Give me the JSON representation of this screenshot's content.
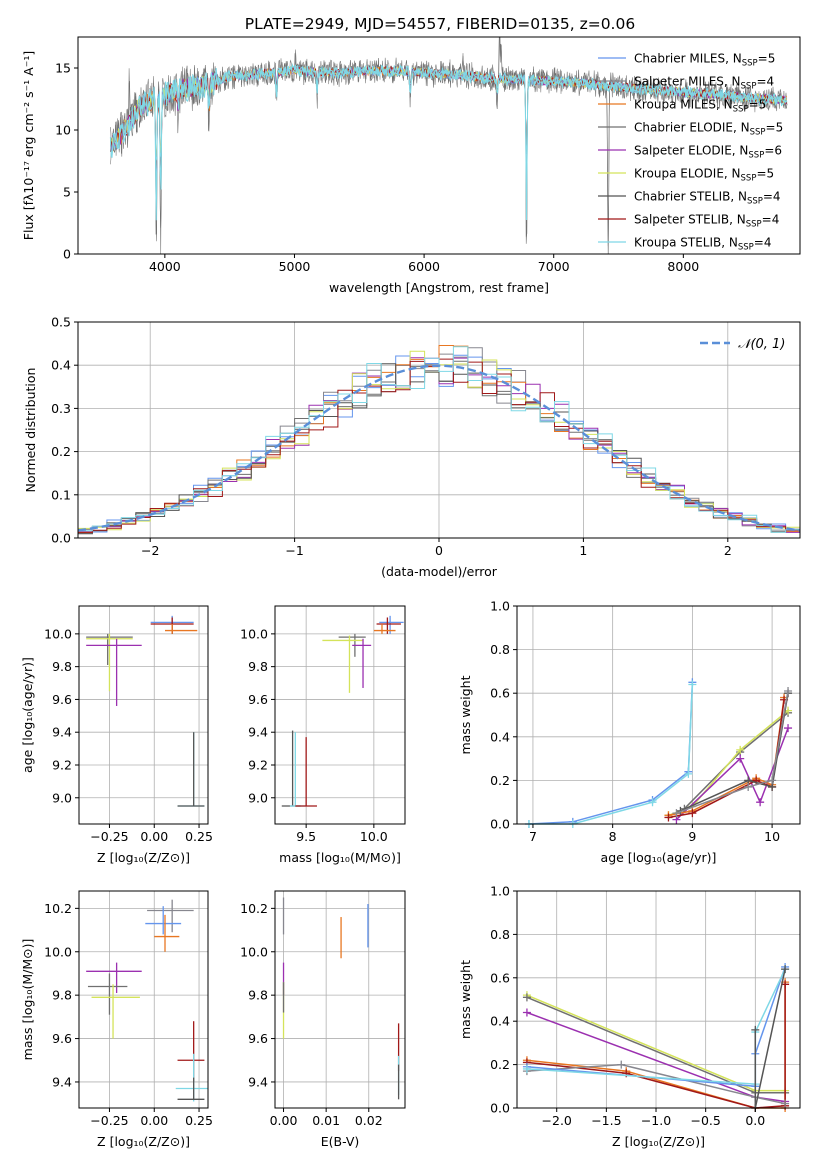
{
  "figure_title": "PLATE=2949, MJD=54557, FIBERID=0135, z=0.06",
  "colors": [
    "#6495ed",
    "#87878f",
    "#e87722",
    "#707070",
    "#9b30b0",
    "#d4e35a",
    "#555555",
    "#a01818",
    "#7fd8e6"
  ],
  "legend_labels": [
    {
      "name": "Chabrier MILES, N",
      "nssp": "SSP",
      "rest": "=5"
    },
    {
      "name": "Salpeter MILES, N",
      "nssp": "SSP",
      "rest": "=4"
    },
    {
      "name": "Kroupa MILES, N",
      "nssp": "SSP",
      "rest": "=5"
    },
    {
      "name": "Chabrier ELODIE, N",
      "nssp": "SSP",
      "rest": "=5"
    },
    {
      "name": "Salpeter ELODIE, N",
      "nssp": "SSP",
      "rest": "=6"
    },
    {
      "name": "Kroupa ELODIE, N",
      "nssp": "SSP",
      "rest": "=5"
    },
    {
      "name": "Chabrier STELIB, N",
      "nssp": "SSP",
      "rest": "=4"
    },
    {
      "name": "Salpeter STELIB, N",
      "nssp": "SSP",
      "rest": "=4"
    },
    {
      "name": "Kroupa STELIB, N",
      "nssp": "SSP",
      "rest": "=4"
    }
  ],
  "chart_data": [
    {
      "id": "spectrum",
      "type": "line",
      "xlabel": "wavelength [Angstrom, rest frame]",
      "ylabel": "Flux [fλ10⁻¹⁷ erg cm⁻² s⁻¹ A⁻¹]",
      "xlim": [
        3330,
        8900
      ],
      "ylim": [
        0,
        17.5
      ],
      "xticks": [
        4000,
        5000,
        6000,
        7000,
        8000
      ],
      "yticks": [
        0,
        5,
        10,
        15
      ],
      "continuum": [
        [
          3580,
          8.5
        ],
        [
          3700,
          10.2
        ],
        [
          3800,
          11.8
        ],
        [
          3950,
          12.6
        ],
        [
          4100,
          13.2
        ],
        [
          4300,
          13.6
        ],
        [
          4500,
          14.3
        ],
        [
          4800,
          14.6
        ],
        [
          5000,
          14.8
        ],
        [
          5300,
          14.6
        ],
        [
          5600,
          14.8
        ],
        [
          5900,
          14.7
        ],
        [
          6200,
          14.5
        ],
        [
          6500,
          14.2
        ],
        [
          6800,
          14.0
        ],
        [
          7100,
          13.9
        ],
        [
          7400,
          13.6
        ],
        [
          7800,
          13.2
        ],
        [
          8200,
          12.9
        ],
        [
          8500,
          12.6
        ],
        [
          8800,
          12.4
        ]
      ],
      "dips": [
        [
          3934,
          -12.5
        ],
        [
          3968,
          -11.8
        ],
        [
          4102,
          -2.5
        ],
        [
          4340,
          -3.5
        ],
        [
          4861,
          -2.5
        ],
        [
          5175,
          -2.0
        ],
        [
          5893,
          -2.2
        ],
        [
          6563,
          -2.0
        ],
        [
          6790,
          -14.0
        ],
        [
          7420,
          -13.6
        ]
      ],
      "spikes": [
        [
          3725,
          3.2
        ],
        [
          5007,
          1.2
        ],
        [
          6300,
          1.5
        ],
        [
          6583,
          4.5
        ],
        [
          6595,
          3.0
        ]
      ],
      "series_note": "thin overplotted model and observed spectra",
      "legend_position": "right"
    },
    {
      "id": "residuals",
      "type": "histogram",
      "xlabel": "(data-model)/error",
      "ylabel": "Normed distribution",
      "xlim": [
        -2.5,
        2.5
      ],
      "ylim": [
        0,
        0.5
      ],
      "xticks": [
        -2,
        -1,
        0,
        1,
        2
      ],
      "yticks": [
        0,
        0.1,
        0.2,
        0.3,
        0.4,
        0.5
      ],
      "bin_width": 0.1,
      "gaussian_label": "𝒩(0, 1)",
      "legend_position": "top-right"
    },
    {
      "id": "age_vs_Z",
      "type": "errorbar",
      "xlabel": "Z [log₁₀(Z/Z⊙)]",
      "ylabel": "age  [log₁₀(age/yr)]",
      "xlim": [
        -0.42,
        0.3
      ],
      "ylim": [
        8.84,
        10.17
      ],
      "xticks": [
        -0.25,
        0.0,
        0.25
      ],
      "yticks": [
        9.0,
        9.2,
        9.4,
        9.6,
        9.8,
        10.0
      ],
      "points": [
        {
          "c": 0,
          "x": 0.1,
          "y": 10.07,
          "ex": [
            -0.12,
            0.12
          ],
          "ey": [
            -0.07,
            0.04
          ]
        },
        {
          "c": 7,
          "x": 0.1,
          "y": 10.06,
          "ex": [
            -0.12,
            0.12
          ],
          "ey": [
            -0.06,
            0.04
          ]
        },
        {
          "c": 2,
          "x": 0.1,
          "y": 10.02,
          "ex": [
            -0.04,
            0.14
          ],
          "ey": [
            -0.02,
            0.04
          ]
        },
        {
          "c": 3,
          "x": -0.26,
          "y": 9.98,
          "ex": [
            -0.12,
            0.14
          ],
          "ey": [
            -0.17,
            0.02
          ]
        },
        {
          "c": 5,
          "x": -0.25,
          "y": 9.97,
          "ex": [
            -0.13,
            0.13
          ],
          "ey": [
            -0.32,
            0.03
          ]
        },
        {
          "c": 4,
          "x": -0.21,
          "y": 9.93,
          "ex": [
            -0.17,
            0.14
          ],
          "ey": [
            -0.37,
            0.04
          ]
        },
        {
          "c": 8,
          "x": 0.22,
          "y": 8.95,
          "ex": [
            -0.09,
            0.06
          ],
          "ey": [
            0,
            0.45
          ]
        },
        {
          "c": 6,
          "x": 0.22,
          "y": 8.95,
          "ex": [
            -0.09,
            0.06
          ],
          "ey": [
            0,
            0.45
          ]
        }
      ]
    },
    {
      "id": "age_vs_mass",
      "type": "errorbar",
      "xlabel": "mass [log₁₀(M/M⊙)]",
      "ylabel": "",
      "xlim": [
        9.27,
        10.23
      ],
      "ylim": [
        8.84,
        10.17
      ],
      "xticks": [
        9.5,
        10.0
      ],
      "yticks": [
        9.0,
        9.2,
        9.4,
        9.6,
        9.8,
        10.0
      ],
      "points": [
        {
          "c": 0,
          "x": 10.12,
          "y": 10.07,
          "ex": [
            -0.08,
            0.1
          ],
          "ey": [
            -0.07,
            0.04
          ]
        },
        {
          "c": 7,
          "x": 10.1,
          "y": 10.06,
          "ex": [
            -0.08,
            0.1
          ],
          "ey": [
            -0.06,
            0.04
          ]
        },
        {
          "c": 2,
          "x": 10.06,
          "y": 10.02,
          "ex": [
            -0.06,
            0.1
          ],
          "ey": [
            -0.02,
            0.04
          ]
        },
        {
          "c": 3,
          "x": 9.86,
          "y": 9.98,
          "ex": [
            -0.12,
            0.08
          ],
          "ey": [
            -0.12,
            0.02
          ]
        },
        {
          "c": 5,
          "x": 9.82,
          "y": 9.96,
          "ex": [
            -0.2,
            0.1
          ],
          "ey": [
            -0.32,
            0.03
          ]
        },
        {
          "c": 4,
          "x": 9.92,
          "y": 9.93,
          "ex": [
            -0.08,
            0.06
          ],
          "ey": [
            -0.26,
            0.04
          ]
        },
        {
          "c": 6,
          "x": 9.4,
          "y": 8.95,
          "ex": [
            -0.08,
            0.06
          ],
          "ey": [
            0,
            0.46
          ]
        },
        {
          "c": 8,
          "x": 9.42,
          "y": 8.95,
          "ex": [
            -0.04,
            0.08
          ],
          "ey": [
            0,
            0.45
          ]
        },
        {
          "c": 7,
          "x": 9.5,
          "y": 8.95,
          "ex": [
            -0.08,
            0.08
          ],
          "ey": [
            0,
            0.42
          ]
        }
      ]
    },
    {
      "id": "weight_vs_age",
      "type": "line",
      "xlabel": "age  [log₁₀(age/yr)]",
      "ylabel": "mass weight",
      "xlim": [
        6.8,
        10.35
      ],
      "ylim": [
        0,
        1.0
      ],
      "xticks": [
        7,
        8,
        9,
        10
      ],
      "yticks": [
        0,
        0.2,
        0.4,
        0.6,
        0.8,
        1.0
      ],
      "series": [
        {
          "c": 0,
          "x": [
            6.95,
            7.5,
            8.5,
            8.95,
            9.0
          ],
          "y": [
            0.0,
            0.01,
            0.11,
            0.24,
            0.65
          ]
        },
        {
          "c": 8,
          "x": 6.95,
          "x_": [
            6.95,
            7.5,
            8.5,
            8.95,
            9.0
          ],
          "y": [
            0.0,
            0.0,
            0.1,
            0.23,
            0.64
          ]
        },
        {
          "c": 3,
          "x": [
            8.9,
            9.6,
            10.2
          ],
          "y": [
            0.07,
            0.33,
            0.51
          ]
        },
        {
          "c": 5,
          "x": [
            8.7,
            9.0,
            9.6,
            10.2
          ],
          "y": [
            0.04,
            0.08,
            0.34,
            0.52
          ]
        },
        {
          "c": 4,
          "x": [
            8.8,
            9.6,
            9.85,
            10.2
          ],
          "y": [
            0.02,
            0.3,
            0.1,
            0.44
          ]
        },
        {
          "c": 2,
          "x": [
            8.7,
            9.0,
            9.8,
            10.0,
            10.15
          ],
          "y": [
            0.04,
            0.06,
            0.21,
            0.18,
            0.58
          ]
        },
        {
          "c": 7,
          "x": [
            8.7,
            9.0,
            9.8,
            10.0,
            10.15
          ],
          "y": [
            0.03,
            0.05,
            0.2,
            0.17,
            0.57
          ]
        },
        {
          "c": 6,
          "x": [
            8.85,
            9.7,
            10.0,
            10.2
          ],
          "y": [
            0.06,
            0.2,
            0.17,
            0.6
          ]
        },
        {
          "c": 1,
          "x": [
            8.8,
            9.7,
            10.0,
            10.2
          ],
          "y": [
            0.05,
            0.17,
            0.2,
            0.61
          ]
        }
      ]
    },
    {
      "id": "mass_vs_Z",
      "type": "errorbar",
      "xlabel": "Z [log₁₀(Z/Z⊙)]",
      "ylabel": "mass [log₁₀(M/M⊙)]",
      "xlim": [
        -0.42,
        0.3
      ],
      "ylim": [
        9.28,
        10.28
      ],
      "xticks": [
        -0.25,
        0.0,
        0.25
      ],
      "yticks": [
        9.4,
        9.6,
        9.8,
        10.0,
        10.2
      ],
      "points": [
        {
          "c": 1,
          "x": 0.1,
          "y": 10.19,
          "ex": [
            -0.14,
            0.12
          ],
          "ey": [
            -0.1,
            0.05
          ]
        },
        {
          "c": 0,
          "x": 0.05,
          "y": 10.13,
          "ex": [
            -0.1,
            0.1
          ],
          "ey": [
            -0.05,
            0.08
          ]
        },
        {
          "c": 2,
          "x": 0.06,
          "y": 10.07,
          "ex": [
            -0.06,
            0.08
          ],
          "ey": [
            -0.07,
            0.1
          ]
        },
        {
          "c": 4,
          "x": -0.21,
          "y": 9.91,
          "ex": [
            -0.17,
            0.14
          ],
          "ey": [
            -0.1,
            0.04
          ]
        },
        {
          "c": 3,
          "x": -0.25,
          "y": 9.84,
          "ex": [
            -0.12,
            0.1
          ],
          "ey": [
            -0.13,
            0.06
          ]
        },
        {
          "c": 5,
          "x": -0.23,
          "y": 9.79,
          "ex": [
            -0.12,
            0.15
          ],
          "ey": [
            -0.19,
            0.06
          ]
        },
        {
          "c": 7,
          "x": 0.22,
          "y": 9.5,
          "ex": [
            -0.09,
            0.06
          ],
          "ey": [
            -0.1,
            0.18
          ]
        },
        {
          "c": 8,
          "x": 0.22,
          "y": 9.37,
          "ex": [
            -0.1,
            0.08
          ],
          "ey": [
            -0.06,
            0.16
          ]
        },
        {
          "c": 6,
          "x": 0.22,
          "y": 9.32,
          "ex": [
            -0.09,
            0.06
          ],
          "ey": [
            0,
            0.1
          ]
        }
      ]
    },
    {
      "id": "mass_vs_EBV",
      "type": "errorbar",
      "xlabel": "E(B-V)",
      "ylabel": "",
      "xlim": [
        -0.002,
        0.0285
      ],
      "ylim": [
        9.28,
        10.28
      ],
      "xticks": [
        0.0,
        0.01,
        0.02
      ],
      "yticks": [
        9.4,
        9.6,
        9.8,
        10.0,
        10.2
      ],
      "points": [
        {
          "c": 1,
          "x": 0.0,
          "y": 10.18,
          "ey": [
            -0.1,
            0.07
          ]
        },
        {
          "c": 4,
          "x": 0.0,
          "y": 9.9,
          "ey": [
            -0.1,
            0.05
          ]
        },
        {
          "c": 5,
          "x": 0.0,
          "y": 9.78,
          "ey": [
            -0.18,
            0.08
          ]
        },
        {
          "c": 3,
          "x": 0.0,
          "y": 9.82,
          "ey": [
            -0.1,
            0.04
          ]
        },
        {
          "c": 2,
          "x": 0.0135,
          "y": 10.06,
          "ey": [
            -0.09,
            0.1
          ]
        },
        {
          "c": 0,
          "x": 0.0198,
          "y": 10.12,
          "ey": [
            -0.1,
            0.1
          ]
        },
        {
          "c": 7,
          "x": 0.027,
          "y": 9.55,
          "ey": [
            -0.1,
            0.12
          ]
        },
        {
          "c": 8,
          "x": 0.027,
          "y": 9.42,
          "ey": [
            -0.08,
            0.1
          ]
        },
        {
          "c": 6,
          "x": 0.027,
          "y": 9.38,
          "ey": [
            -0.06,
            0.1
          ]
        }
      ]
    },
    {
      "id": "weight_vs_Z",
      "type": "line",
      "xlabel": "Z [log₁₀(Z/Z⊙)]",
      "ylabel": "mass weight",
      "xlim": [
        -2.4,
        0.45
      ],
      "ylim": [
        0,
        1.0
      ],
      "xticks": [
        -2.0,
        -1.5,
        -1.0,
        -0.5,
        0.0
      ],
      "yticks": [
        0,
        0.2,
        0.4,
        0.6,
        0.8,
        1.0
      ],
      "series": [
        {
          "c": 5,
          "x": [
            -2.3,
            0.0,
            0.3
          ],
          "y": [
            0.52,
            0.08,
            0.08
          ]
        },
        {
          "c": 3,
          "x": [
            -2.3,
            0.0,
            0.3
          ],
          "y": [
            0.51,
            0.07,
            0.07
          ]
        },
        {
          "c": 4,
          "x": [
            -2.3,
            0.0,
            0.3
          ],
          "y": [
            0.44,
            0.05,
            0.03
          ]
        },
        {
          "c": 2,
          "x": [
            -2.3,
            -1.3,
            0.0,
            0.3,
            0.3
          ],
          "y": [
            0.22,
            0.17,
            0.0,
            0.0,
            0.58
          ]
        },
        {
          "c": 7,
          "x": [
            -2.3,
            -1.3,
            0.0,
            0.3,
            0.3
          ],
          "y": [
            0.21,
            0.16,
            0.0,
            0.01,
            0.57
          ]
        },
        {
          "c": 1,
          "x": [
            -2.3,
            -1.35,
            0.0,
            0.3
          ],
          "y": [
            0.17,
            0.2,
            0.05,
            0.02
          ]
        },
        {
          "c": 0,
          "x": [
            -2.3,
            0.0,
            0.0,
            0.3
          ],
          "y": [
            0.19,
            0.1,
            0.25,
            0.65
          ]
        },
        {
          "c": 8,
          "x": [
            -2.3,
            0.0,
            0.0,
            0.3
          ],
          "y": [
            0.18,
            0.11,
            0.35,
            0.64
          ]
        },
        {
          "c": 6,
          "x": [
            0.0,
            0.0,
            0.3
          ],
          "y": [
            0.36,
            0.0,
            0.64
          ]
        }
      ]
    }
  ]
}
